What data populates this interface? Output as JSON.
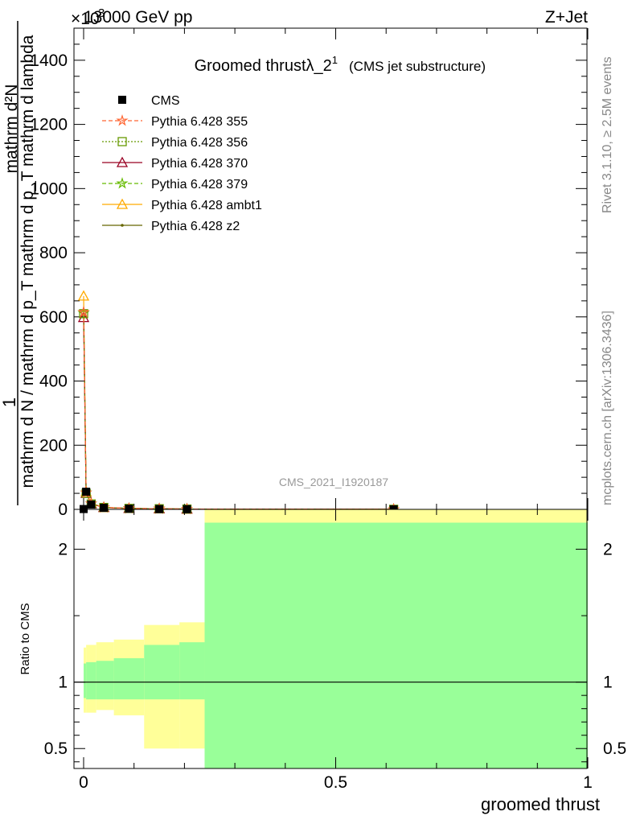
{
  "header": {
    "energy": "13000 GeV pp",
    "process": "Z+Jet",
    "exponent_label": "×10",
    "exponent_value": "3"
  },
  "side_labels": {
    "rivet": "Rivet 3.1.10, ≥ 2.5M events",
    "mcplots": "mcplots.cern.ch [arXiv:1306.3436]"
  },
  "analysis_id": "CMS_2021_I1920187",
  "chart_data": [
    {
      "type": "line",
      "panel": "main",
      "title": "Groomed thrustλ_2",
      "title_sup": "1",
      "subtitle": "(CMS jet substructure)",
      "ylabel_numerator": "1",
      "ylabel_fraction_num": "mathrm d²N",
      "ylabel_fraction_den": "mathrm d N / mathrm d p_T mathrm d p_T mathrm d lambda",
      "xlim": [
        0,
        1
      ],
      "ylim": [
        0,
        1500
      ],
      "y_ticks": [
        0,
        200,
        400,
        600,
        800,
        1000,
        1200,
        1400
      ],
      "y_tick_labels": [
        "0",
        "200",
        "400",
        "600",
        "800",
        "1000",
        "1200",
        "1400"
      ],
      "legend_position": "top-left",
      "x": [
        0.0,
        0.005,
        0.015,
        0.04,
        0.09,
        0.15,
        0.205,
        0.615
      ],
      "series": [
        {
          "name": "CMS",
          "color": "#000000",
          "marker": "square",
          "line": "none",
          "values": [
            1,
            55,
            15,
            5,
            2,
            1,
            0.5,
            0.1
          ]
        },
        {
          "name": "Pythia 6.428 355",
          "color": "#ff6633",
          "marker": "star",
          "line": "dashed",
          "values": [
            615,
            52,
            18,
            6,
            3,
            2,
            1,
            0.2
          ]
        },
        {
          "name": "Pythia 6.428 356",
          "color": "#669900",
          "marker": "square-open",
          "line": "dotted",
          "values": [
            610,
            50,
            17,
            6,
            3,
            2,
            1,
            0.2
          ]
        },
        {
          "name": "Pythia 6.428 370",
          "color": "#990022",
          "marker": "triangle-open",
          "line": "solid",
          "values": [
            598,
            50,
            17,
            6,
            3,
            2,
            1,
            0.2
          ]
        },
        {
          "name": "Pythia 6.428 379",
          "color": "#66bb00",
          "marker": "star",
          "line": "dashed",
          "values": [
            612,
            52,
            18,
            6,
            3,
            2,
            1,
            0.2
          ]
        },
        {
          "name": "Pythia 6.428 ambt1",
          "color": "#ffaa00",
          "marker": "triangle-open",
          "line": "solid",
          "values": [
            665,
            55,
            19,
            6,
            3,
            2,
            1,
            0.2
          ]
        },
        {
          "name": "Pythia 6.428 z2",
          "color": "#666600",
          "marker": "dot",
          "line": "solid",
          "values": [
            620,
            52,
            18,
            6,
            3,
            2,
            1,
            0.2
          ]
        }
      ]
    },
    {
      "type": "area",
      "panel": "ratio",
      "ylabel": "Ratio to CMS",
      "xlabel": "groomed thrust",
      "xlim": [
        0,
        1
      ],
      "ylim": [
        0.35,
        2.3
      ],
      "x_ticks": [
        0,
        0.5,
        1
      ],
      "x_tick_labels": [
        "0",
        "0.5",
        "1"
      ],
      "y_ticks": [
        0.5,
        1,
        2
      ],
      "y_tick_labels": [
        "0.5",
        "1",
        "2"
      ],
      "reference_line": 1,
      "bands": {
        "bin_edges": [
          0,
          0.005,
          0.025,
          0.06,
          0.12,
          0.19,
          0.24,
          1.0
        ],
        "stat_color": "#99ff99",
        "total_color": "#ffff99",
        "stat_low": [
          0.88,
          0.87,
          0.87,
          0.87,
          0.87,
          0.87,
          0.35
        ],
        "stat_high": [
          1.14,
          1.15,
          1.16,
          1.18,
          1.28,
          1.3,
          2.2
        ],
        "total_low": [
          0.77,
          0.77,
          0.79,
          0.75,
          0.5,
          0.5,
          0.35
        ],
        "total_high": [
          1.26,
          1.28,
          1.3,
          1.32,
          1.43,
          1.45,
          2.3
        ]
      }
    }
  ]
}
